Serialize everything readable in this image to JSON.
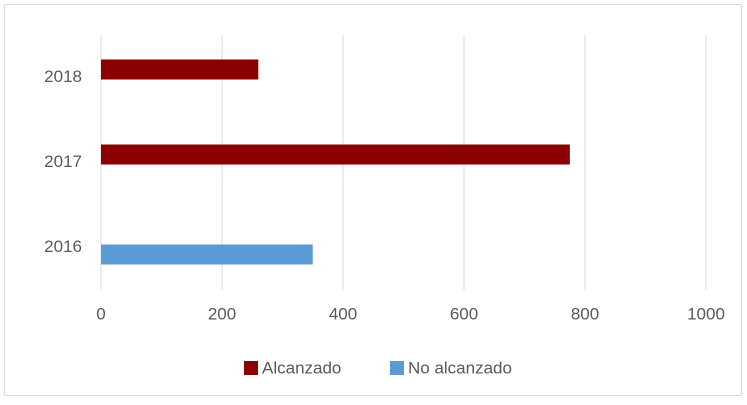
{
  "chart_data": {
    "type": "bar",
    "orientation": "horizontal",
    "categories": [
      "2016",
      "2017",
      "2018"
    ],
    "series": [
      {
        "name": "Alcanzado",
        "color": "#8b0000",
        "values": [
          null,
          775,
          260
        ]
      },
      {
        "name": "No alcanzado",
        "color": "#5b9bd5",
        "values": [
          350,
          null,
          null
        ]
      }
    ],
    "xlim": [
      0,
      1000
    ],
    "xticks": [
      0,
      200,
      400,
      600,
      800,
      1000
    ],
    "grid": true,
    "legend": "bottom"
  }
}
